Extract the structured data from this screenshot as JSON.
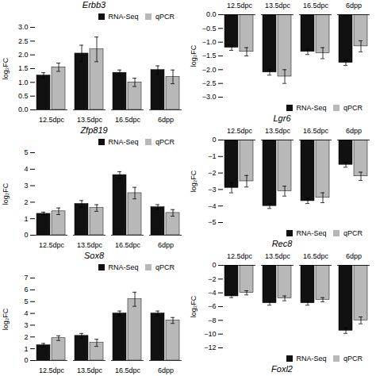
{
  "chart_data": [
    {
      "type": "bar",
      "title": "Erbb3",
      "ylabel": "log₂FC",
      "categories": [
        "12.5dpc",
        "13.5dpc",
        "16.5dpc",
        "6dpp"
      ],
      "series": [
        {
          "name": "RNA-Seq",
          "color": "#111111",
          "values": [
            1.25,
            2.05,
            1.35,
            1.45
          ],
          "errors": [
            0.1,
            0.3,
            0.1,
            0.15
          ]
        },
        {
          "name": "qPCR",
          "color": "#b8b8b8",
          "values": [
            1.55,
            2.2,
            1.0,
            1.2
          ],
          "errors": [
            0.15,
            0.45,
            0.15,
            0.25
          ]
        }
      ],
      "ylim": [
        0.0,
        3.0
      ],
      "yticks": [
        {
          "value": 0,
          "label": "0.0"
        },
        {
          "value": 0.5,
          "label": "0.5"
        },
        {
          "value": 1,
          "label": "1.0"
        },
        {
          "value": 1.5,
          "label": "1.5"
        },
        {
          "value": 2,
          "label": "2.0"
        },
        {
          "value": 2.5,
          "label": "2.5"
        },
        {
          "value": 3,
          "label": "3.0"
        }
      ],
      "legend": "upper right"
    },
    {
      "type": "bar",
      "title": "Lgr6",
      "ylabel": "log₂FC",
      "categories": [
        "12.5dpc",
        "13.5dpc",
        "16.5dpc",
        "6dpp"
      ],
      "series": [
        {
          "name": "RNA-Seq",
          "color": "#111111",
          "values": [
            -1.2,
            -2.1,
            -1.35,
            -1.75
          ],
          "errors": [
            0.1,
            0.1,
            0.1,
            0.1
          ]
        },
        {
          "name": "qPCR",
          "color": "#b8b8b8",
          "values": [
            -1.35,
            -2.25,
            -1.4,
            -1.15
          ],
          "errors": [
            0.15,
            0.25,
            0.2,
            0.2
          ]
        }
      ],
      "ylim": [
        -3.0,
        0.0
      ],
      "yticks": [
        {
          "value": -3,
          "label": "−3.0"
        },
        {
          "value": -2.5,
          "label": "−2.5"
        },
        {
          "value": -2,
          "label": "−2.0"
        },
        {
          "value": -1.5,
          "label": "−1.5"
        },
        {
          "value": -1,
          "label": "−1.0"
        },
        {
          "value": -0.5,
          "label": "−0.5"
        },
        {
          "value": 0,
          "label": "0.0"
        }
      ],
      "legend": "lower right"
    },
    {
      "type": "bar",
      "title": "Zfp819",
      "ylabel": "log₂FC",
      "categories": [
        "12.5dpc",
        "13.5dpc",
        "16.5dpc",
        "6dpp"
      ],
      "series": [
        {
          "name": "RNA-Seq",
          "color": "#111111",
          "values": [
            1.3,
            1.9,
            3.65,
            1.7
          ],
          "errors": [
            0.1,
            0.2,
            0.2,
            0.15
          ]
        },
        {
          "name": "qPCR",
          "color": "#b8b8b8",
          "values": [
            1.45,
            1.65,
            2.55,
            1.35
          ],
          "errors": [
            0.2,
            0.2,
            0.35,
            0.2
          ]
        }
      ],
      "ylim": [
        0.0,
        5.0
      ],
      "yticks": [
        0,
        1,
        2,
        3,
        4,
        5
      ],
      "legend": "upper right"
    },
    {
      "type": "bar",
      "title": "Rec8",
      "ylabel": "log₂FC",
      "categories": [
        "12.5dpc",
        "13.5dpc",
        "16.5dpc",
        "6dpp"
      ],
      "series": [
        {
          "name": "RNA-Seq",
          "color": "#111111",
          "values": [
            -2.9,
            -4.0,
            -3.7,
            -1.5
          ],
          "errors": [
            0.3,
            0.15,
            0.15,
            0.15
          ]
        },
        {
          "name": "qPCR",
          "color": "#b8b8b8",
          "values": [
            -2.5,
            -3.1,
            -3.5,
            -2.2
          ],
          "errors": [
            0.35,
            0.3,
            0.3,
            0.25
          ]
        }
      ],
      "ylim": [
        -5.0,
        0.0
      ],
      "yticks": [
        {
          "value": -5,
          "label": "−5"
        },
        {
          "value": -4,
          "label": "−4"
        },
        {
          "value": -3,
          "label": "−3"
        },
        {
          "value": -2,
          "label": "−2"
        },
        {
          "value": -1,
          "label": "−1"
        },
        0
      ],
      "legend": "lower right"
    },
    {
      "type": "bar",
      "title": "Sox8",
      "ylabel": "log₂FC",
      "categories": [
        "12.5dpc",
        "13.5dpc",
        "16.5dpc",
        "6dpp"
      ],
      "series": [
        {
          "name": "RNA-Seq",
          "color": "#111111",
          "values": [
            1.3,
            2.1,
            4.0,
            4.0
          ],
          "errors": [
            0.15,
            0.2,
            0.2,
            0.2
          ]
        },
        {
          "name": "qPCR",
          "color": "#b8b8b8",
          "values": [
            1.9,
            1.5,
            5.2,
            3.4
          ],
          "errors": [
            0.2,
            0.3,
            0.6,
            0.25
          ]
        }
      ],
      "ylim": [
        0.0,
        7.0
      ],
      "yticks": [
        0,
        1,
        2,
        3,
        4,
        5,
        6,
        7
      ],
      "legend": "upper right"
    },
    {
      "type": "bar",
      "title": "Foxl2",
      "ylabel": "log₂FC",
      "categories": [
        "12.5dpc",
        "13.5dpc",
        "16.5dpc",
        "6dpp"
      ],
      "series": [
        {
          "name": "RNA-Seq",
          "color": "#111111",
          "values": [
            -4.5,
            -5.5,
            -5.5,
            -9.5
          ],
          "errors": [
            0.2,
            0.3,
            0.3,
            0.4
          ]
        },
        {
          "name": "qPCR",
          "color": "#b8b8b8",
          "values": [
            -4.0,
            -4.8,
            -5.0,
            -8.0
          ],
          "errors": [
            0.3,
            0.35,
            0.3,
            0.5
          ]
        }
      ],
      "ylim": [
        -12.0,
        0.0
      ],
      "yticks": [
        {
          "value": -12,
          "label": "−12"
        },
        {
          "value": -10,
          "label": "−10"
        },
        {
          "value": -8,
          "label": "−8"
        },
        {
          "value": -6,
          "label": "−6"
        },
        {
          "value": -4,
          "label": "−4"
        },
        {
          "value": -2,
          "label": "−2"
        },
        0
      ],
      "legend": "lower right"
    }
  ]
}
